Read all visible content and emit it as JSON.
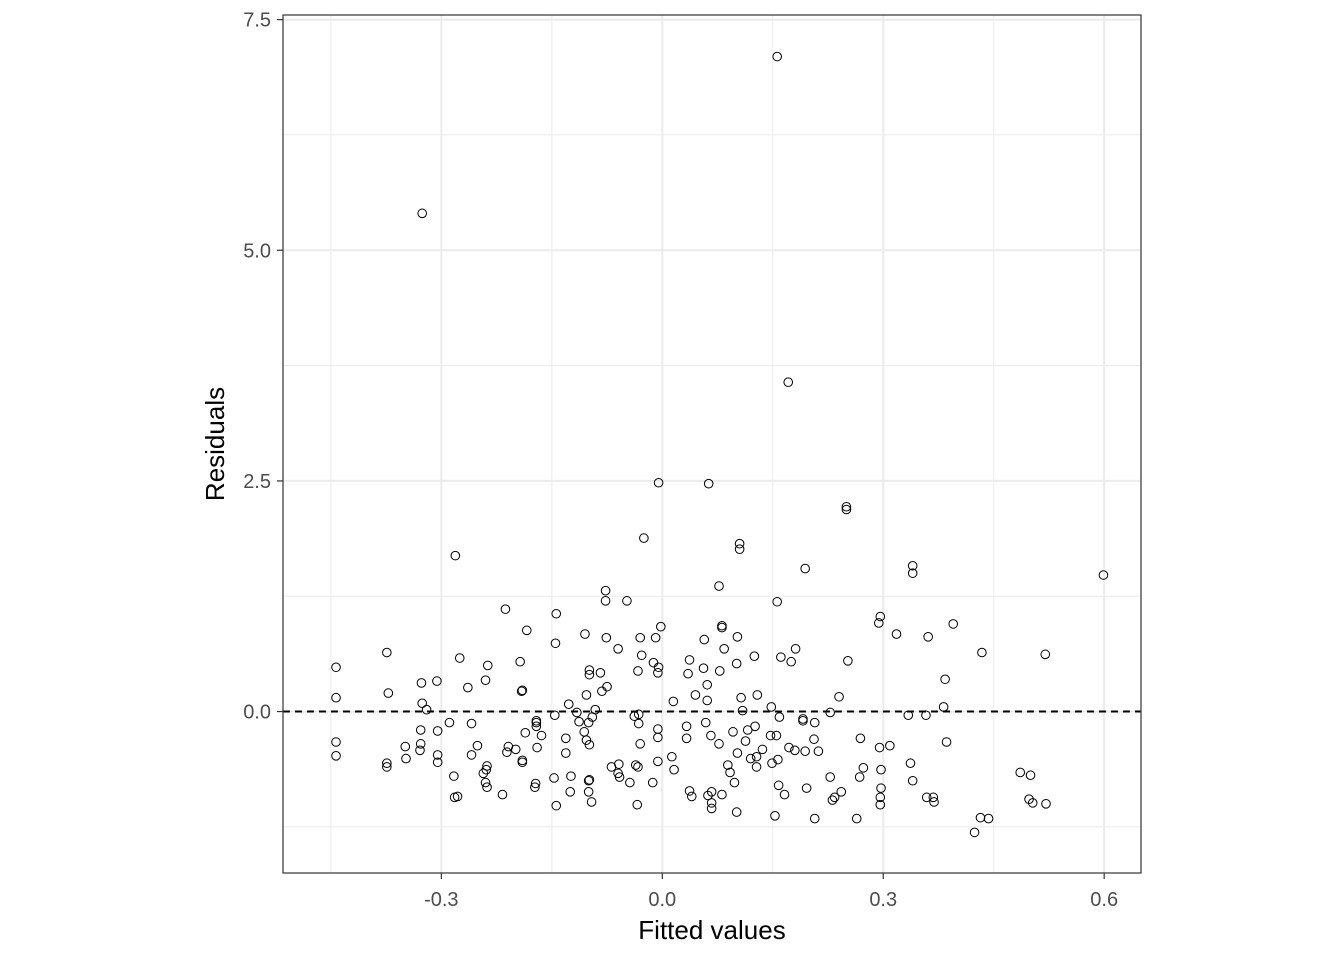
{
  "chart_data": {
    "type": "scatter",
    "title": "",
    "xlabel": "Fitted values",
    "ylabel": "Residuals",
    "xlim": [
      -0.515,
      0.65
    ],
    "ylim": [
      -1.75,
      7.55
    ],
    "xticks": [
      -0.3,
      0.0,
      0.3,
      0.6
    ],
    "xtick_labels": [
      "-0.3",
      "0.0",
      "0.3",
      "0.6"
    ],
    "yticks": [
      0.0,
      2.5,
      5.0,
      7.5
    ],
    "ytick_labels": [
      "0.0",
      "2.5",
      "5.0",
      "7.5"
    ],
    "grid": true,
    "reference_line": {
      "y": 0,
      "style": "dashed",
      "color": "#000000"
    },
    "marker": "open-circle",
    "point_color": "#000000",
    "background": "#ffffff",
    "grid_color": "#ebebeb",
    "series": [
      {
        "points": [
          [
            0.156,
            7.1
          ],
          [
            -0.326,
            5.4
          ],
          [
            0.171,
            3.57
          ],
          [
            -0.005,
            2.48
          ],
          [
            0.063,
            2.47
          ],
          [
            0.25,
            2.22
          ],
          [
            0.25,
            2.19
          ],
          [
            -0.025,
            1.88
          ],
          [
            0.105,
            1.82
          ],
          [
            0.105,
            1.76
          ],
          [
            -0.281,
            1.69
          ],
          [
            0.34,
            1.58
          ],
          [
            0.34,
            1.5
          ],
          [
            0.194,
            1.55
          ],
          [
            0.599,
            1.48
          ],
          [
            0.077,
            1.36
          ],
          [
            -0.077,
            1.31
          ],
          [
            -0.077,
            1.2
          ],
          [
            -0.048,
            1.2
          ],
          [
            0.156,
            1.19
          ],
          [
            -0.213,
            1.11
          ],
          [
            -0.144,
            1.06
          ],
          [
            0.296,
            1.03
          ],
          [
            0.294,
            0.96
          ],
          [
            0.081,
            0.93
          ],
          [
            0.081,
            0.91
          ],
          [
            0.395,
            0.95
          ],
          [
            -0.002,
            0.92
          ],
          [
            -0.184,
            0.88
          ],
          [
            -0.105,
            0.84
          ],
          [
            0.318,
            0.84
          ],
          [
            -0.076,
            0.8
          ],
          [
            -0.03,
            0.8
          ],
          [
            0.102,
            0.81
          ],
          [
            -0.009,
            0.8
          ],
          [
            0.361,
            0.81
          ],
          [
            0.057,
            0.78
          ],
          [
            -0.145,
            0.74
          ],
          [
            0.181,
            0.68
          ],
          [
            0.084,
            0.68
          ],
          [
            0.125,
            0.6
          ],
          [
            -0.443,
            0.48
          ],
          [
            -0.374,
            0.64
          ],
          [
            -0.06,
            0.68
          ],
          [
            0.434,
            0.64
          ],
          [
            0.52,
            0.62
          ],
          [
            -0.275,
            0.58
          ],
          [
            -0.028,
            0.61
          ],
          [
            0.161,
            0.59
          ],
          [
            0.037,
            0.56
          ],
          [
            -0.193,
            0.54
          ],
          [
            -0.237,
            0.5
          ],
          [
            0.252,
            0.55
          ],
          [
            -0.012,
            0.53
          ],
          [
            0.175,
            0.54
          ],
          [
            -0.005,
            0.48
          ],
          [
            0.101,
            0.52
          ],
          [
            0.056,
            0.47
          ],
          [
            -0.099,
            0.45
          ],
          [
            -0.099,
            0.4
          ],
          [
            -0.084,
            0.42
          ],
          [
            -0.033,
            0.44
          ],
          [
            -0.006,
            0.42
          ],
          [
            0.078,
            0.44
          ],
          [
            0.035,
            0.41
          ],
          [
            0.384,
            0.35
          ],
          [
            -0.327,
            0.31
          ],
          [
            -0.306,
            0.33
          ],
          [
            -0.24,
            0.34
          ],
          [
            -0.264,
            0.26
          ],
          [
            0.061,
            0.29
          ],
          [
            -0.075,
            0.27
          ],
          [
            -0.082,
            0.22
          ],
          [
            -0.19,
            0.23
          ],
          [
            -0.191,
            0.22
          ],
          [
            -0.372,
            0.2
          ],
          [
            -0.443,
            0.15
          ],
          [
            0.045,
            0.18
          ],
          [
            0.129,
            0.18
          ],
          [
            0.24,
            0.16
          ],
          [
            -0.103,
            0.18
          ],
          [
            0.107,
            0.15
          ],
          [
            0.061,
            0.12
          ],
          [
            0.015,
            0.11
          ],
          [
            -0.326,
            0.09
          ],
          [
            -0.127,
            0.08
          ],
          [
            0.148,
            0.05
          ],
          [
            0.382,
            0.05
          ],
          [
            -0.32,
            0.02
          ],
          [
            -0.091,
            0.02
          ],
          [
            0.109,
            0.01
          ],
          [
            -0.116,
            -0.01
          ],
          [
            0.228,
            -0.01
          ],
          [
            -0.032,
            -0.03
          ],
          [
            -0.146,
            -0.04
          ],
          [
            0.334,
            -0.04
          ],
          [
            0.358,
            -0.04
          ],
          [
            -0.038,
            -0.05
          ],
          [
            -0.095,
            -0.06
          ],
          [
            0.159,
            -0.06
          ],
          [
            0.191,
            -0.08
          ],
          [
            -0.113,
            -0.11
          ],
          [
            0.191,
            -0.1
          ],
          [
            -0.171,
            -0.1
          ],
          [
            -0.1,
            -0.12
          ],
          [
            -0.171,
            -0.12
          ],
          [
            -0.289,
            -0.12
          ],
          [
            -0.259,
            -0.13
          ],
          [
            0.207,
            -0.12
          ],
          [
            -0.032,
            -0.13
          ],
          [
            0.059,
            -0.12
          ],
          [
            -0.171,
            -0.16
          ],
          [
            0.126,
            -0.16
          ],
          [
            0.033,
            -0.16
          ],
          [
            -0.006,
            -0.19
          ],
          [
            -0.328,
            -0.2
          ],
          [
            0.116,
            -0.2
          ],
          [
            -0.106,
            -0.22
          ],
          [
            -0.305,
            -0.21
          ],
          [
            -0.186,
            -0.23
          ],
          [
            0.096,
            -0.22
          ],
          [
            -0.164,
            -0.26
          ],
          [
            0.066,
            -0.26
          ],
          [
            0.147,
            -0.26
          ],
          [
            0.155,
            -0.26
          ],
          [
            0.269,
            -0.29
          ],
          [
            -0.131,
            -0.29
          ],
          [
            0.033,
            -0.29
          ],
          [
            -0.006,
            -0.28
          ],
          [
            -0.103,
            -0.31
          ],
          [
            0.206,
            -0.3
          ],
          [
            0.113,
            -0.32
          ],
          [
            -0.03,
            -0.35
          ],
          [
            0.077,
            -0.35
          ],
          [
            0.386,
            -0.33
          ],
          [
            -0.443,
            -0.33
          ],
          [
            -0.328,
            -0.35
          ],
          [
            -0.349,
            -0.38
          ],
          [
            0.309,
            -0.37
          ],
          [
            0.295,
            -0.39
          ],
          [
            -0.099,
            -0.36
          ],
          [
            -0.209,
            -0.38
          ],
          [
            -0.251,
            -0.37
          ],
          [
            -0.17,
            -0.39
          ],
          [
            0.172,
            -0.39
          ],
          [
            0.136,
            -0.41
          ],
          [
            -0.199,
            -0.41
          ],
          [
            0.212,
            -0.43
          ],
          [
            -0.211,
            -0.44
          ],
          [
            0.18,
            -0.42
          ],
          [
            0.194,
            -0.43
          ],
          [
            -0.329,
            -0.42
          ],
          [
            -0.131,
            -0.45
          ],
          [
            0.102,
            -0.45
          ],
          [
            0.12,
            -0.51
          ],
          [
            -0.305,
            -0.47
          ],
          [
            -0.443,
            -0.48
          ],
          [
            -0.259,
            -0.47
          ],
          [
            0.013,
            -0.49
          ],
          [
            0.128,
            -0.49
          ],
          [
            -0.348,
            -0.51
          ],
          [
            0.157,
            -0.52
          ],
          [
            0.149,
            -0.56
          ],
          [
            -0.19,
            -0.53
          ],
          [
            -0.006,
            -0.54
          ],
          [
            -0.305,
            -0.55
          ],
          [
            -0.19,
            -0.55
          ],
          [
            -0.374,
            -0.56
          ],
          [
            -0.374,
            -0.6
          ],
          [
            -0.059,
            -0.57
          ],
          [
            0.089,
            -0.58
          ],
          [
            0.337,
            -0.56
          ],
          [
            0.128,
            -0.6
          ],
          [
            -0.069,
            -0.6
          ],
          [
            -0.036,
            -0.58
          ],
          [
            -0.033,
            -0.6
          ],
          [
            -0.238,
            -0.59
          ],
          [
            0.016,
            -0.63
          ],
          [
            -0.239,
            -0.63
          ],
          [
            0.273,
            -0.61
          ],
          [
            -0.06,
            -0.67
          ],
          [
            0.092,
            -0.66
          ],
          [
            0.297,
            -0.63
          ],
          [
            -0.243,
            -0.67
          ],
          [
            -0.283,
            -0.7
          ],
          [
            -0.058,
            -0.71
          ],
          [
            -0.124,
            -0.7
          ],
          [
            0.486,
            -0.66
          ],
          [
            0.5,
            -0.69
          ],
          [
            -0.099,
            -0.74
          ],
          [
            0.228,
            -0.71
          ],
          [
            0.268,
            -0.71
          ],
          [
            -0.1,
            -0.75
          ],
          [
            -0.147,
            -0.72
          ],
          [
            0.34,
            -0.75
          ],
          [
            -0.24,
            -0.77
          ],
          [
            -0.172,
            -0.78
          ],
          [
            0.158,
            -0.8
          ],
          [
            -0.173,
            -0.82
          ],
          [
            -0.238,
            -0.82
          ],
          [
            0.297,
            -0.83
          ],
          [
            -0.013,
            -0.77
          ],
          [
            0.098,
            -0.77
          ],
          [
            0.196,
            -0.83
          ],
          [
            -0.044,
            -0.77
          ],
          [
            0.037,
            -0.86
          ],
          [
            0.243,
            -0.87
          ],
          [
            0.067,
            -0.87
          ],
          [
            -0.125,
            -0.87
          ],
          [
            -0.1,
            -0.87
          ],
          [
            -0.217,
            -0.9
          ],
          [
            0.081,
            -0.9
          ],
          [
            0.166,
            -0.9
          ],
          [
            -0.278,
            -0.92
          ],
          [
            -0.282,
            -0.93
          ],
          [
            0.04,
            -0.92
          ],
          [
            0.234,
            -0.93
          ],
          [
            0.368,
            -0.93
          ],
          [
            0.359,
            -0.93
          ],
          [
            0.062,
            -0.91
          ],
          [
            0.296,
            -0.93
          ],
          [
            0.498,
            -0.95
          ],
          [
            0.231,
            -0.96
          ],
          [
            -0.096,
            -0.98
          ],
          [
            0.067,
            -0.99
          ],
          [
            0.369,
            -0.98
          ],
          [
            0.503,
            -0.99
          ],
          [
            0.521,
            -1.0
          ],
          [
            0.296,
            -1.01
          ],
          [
            -0.034,
            -1.01
          ],
          [
            -0.144,
            -1.02
          ],
          [
            0.067,
            -1.05
          ],
          [
            0.101,
            -1.09
          ],
          [
            0.153,
            -1.13
          ],
          [
            0.207,
            -1.16
          ],
          [
            0.264,
            -1.16
          ],
          [
            0.432,
            -1.15
          ],
          [
            0.443,
            -1.16
          ],
          [
            0.424,
            -1.31
          ]
        ]
      }
    ]
  }
}
